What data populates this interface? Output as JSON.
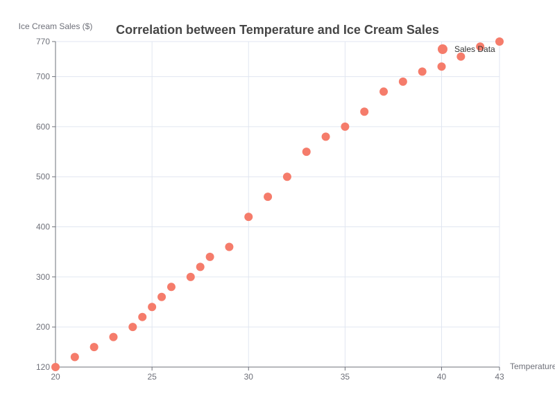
{
  "chart_data": {
    "type": "scatter",
    "title": "Correlation between Temperature and Ice Cream Sales",
    "xlabel": "Temperature",
    "ylabel": "Ice Cream Sales ($)",
    "xlim": [
      20,
      43
    ],
    "ylim": [
      120,
      770
    ],
    "x_ticks": [
      20,
      25,
      30,
      35,
      40,
      43
    ],
    "y_ticks": [
      120,
      200,
      300,
      400,
      500,
      600,
      700,
      770
    ],
    "grid": true,
    "legend_position": "top-right",
    "series": [
      {
        "name": "Sales Data",
        "color": "#f57c6b",
        "points": [
          {
            "x": 20,
            "y": 120
          },
          {
            "x": 21,
            "y": 140
          },
          {
            "x": 22,
            "y": 160
          },
          {
            "x": 23,
            "y": 180
          },
          {
            "x": 24,
            "y": 200
          },
          {
            "x": 24.5,
            "y": 220
          },
          {
            "x": 25,
            "y": 240
          },
          {
            "x": 25.5,
            "y": 260
          },
          {
            "x": 26,
            "y": 280
          },
          {
            "x": 27,
            "y": 300
          },
          {
            "x": 27.5,
            "y": 320
          },
          {
            "x": 28,
            "y": 340
          },
          {
            "x": 29,
            "y": 360
          },
          {
            "x": 30,
            "y": 420
          },
          {
            "x": 31,
            "y": 460
          },
          {
            "x": 32,
            "y": 500
          },
          {
            "x": 33,
            "y": 550
          },
          {
            "x": 34,
            "y": 580
          },
          {
            "x": 35,
            "y": 600
          },
          {
            "x": 36,
            "y": 630
          },
          {
            "x": 37,
            "y": 670
          },
          {
            "x": 38,
            "y": 690
          },
          {
            "x": 39,
            "y": 710
          },
          {
            "x": 40,
            "y": 720
          },
          {
            "x": 41,
            "y": 740
          },
          {
            "x": 42,
            "y": 760
          },
          {
            "x": 43,
            "y": 770
          }
        ]
      }
    ]
  }
}
